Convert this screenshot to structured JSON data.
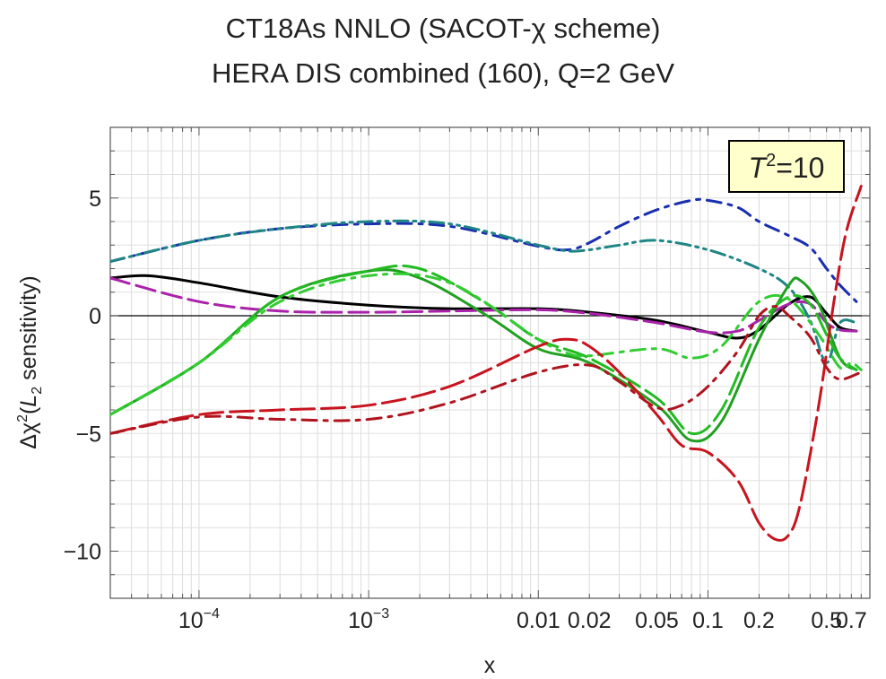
{
  "chart_data": {
    "type": "line",
    "title": "CT18As NNLO (SACOT-χ scheme)",
    "subtitle": "HERA DIS combined (160), Q=2 GeV",
    "xlabel": "x",
    "ylabel_parts": {
      "prefix": "Δχ",
      "sup": "2",
      "open": "(",
      "L": "L",
      "sub": "2",
      "suffix": " sensitivity)"
    },
    "xscale": "log",
    "xlim": [
      3e-05,
      0.9
    ],
    "ylim": [
      -12,
      8
    ],
    "yticks": [
      5,
      0,
      -5,
      -10
    ],
    "ytick_labels": [
      "5",
      "0",
      "−5",
      "−10"
    ],
    "xticks": [
      {
        "v": 0.0001,
        "base": "10",
        "exp": "−4"
      },
      {
        "v": 0.001,
        "base": "10",
        "exp": "−3"
      },
      {
        "v": 0.01,
        "label": "0.01"
      },
      {
        "v": 0.02,
        "label": "0.02"
      },
      {
        "v": 0.05,
        "label": "0.05"
      },
      {
        "v": 0.1,
        "label": "0.1"
      },
      {
        "v": 0.2,
        "label": "0.2"
      },
      {
        "v": 0.5,
        "label": "0.5"
      },
      {
        "v": 0.7,
        "label": "0.7"
      }
    ],
    "annotation": {
      "T": "T",
      "sup": "2",
      "text": "=10",
      "fill": "#ffffcc"
    },
    "series": [
      {
        "name": "dashdot-blue",
        "color": "#1a2fb0",
        "dash": "16 8 4 8",
        "x": [
          3e-05,
          0.0001,
          0.0003,
          0.001,
          0.003,
          0.01,
          0.015,
          0.02,
          0.03,
          0.05,
          0.08,
          0.1,
          0.15,
          0.2,
          0.3,
          0.4,
          0.5,
          0.6,
          0.75
        ],
        "y": [
          2.3,
          3.2,
          3.7,
          3.9,
          3.8,
          2.95,
          2.8,
          3.1,
          3.8,
          4.5,
          4.9,
          4.9,
          4.6,
          4.0,
          3.4,
          2.9,
          2.0,
          1.3,
          0.6
        ]
      },
      {
        "name": "dashdotdot-teal",
        "color": "#1e8585",
        "dash": "16 6 3 6 3 6",
        "x": [
          3e-05,
          0.0001,
          0.0003,
          0.001,
          0.003,
          0.01,
          0.015,
          0.02,
          0.03,
          0.05,
          0.1,
          0.2,
          0.3,
          0.4,
          0.5,
          0.6,
          0.75
        ],
        "y": [
          2.3,
          3.2,
          3.7,
          4.0,
          3.9,
          3.0,
          2.75,
          2.8,
          3.0,
          3.2,
          2.8,
          2.0,
          1.2,
          -0.2,
          -2.0,
          -0.3,
          -0.3
        ]
      },
      {
        "name": "solid-black",
        "color": "#000000",
        "dash": "",
        "x": [
          3e-05,
          5e-05,
          0.0001,
          0.0003,
          0.001,
          0.003,
          0.01,
          0.02,
          0.05,
          0.1,
          0.15,
          0.2,
          0.3,
          0.4,
          0.5,
          0.6,
          0.75
        ],
        "y": [
          1.6,
          1.7,
          1.4,
          0.8,
          0.45,
          0.3,
          0.3,
          0.15,
          -0.2,
          -0.7,
          -0.95,
          -0.6,
          0.5,
          0.8,
          0.1,
          -0.5,
          -0.65
        ]
      },
      {
        "name": "longdash-magenta",
        "color": "#aa22aa",
        "dash": "22 8",
        "x": [
          3e-05,
          0.0001,
          0.0003,
          0.001,
          0.003,
          0.01,
          0.02,
          0.05,
          0.1,
          0.15,
          0.2,
          0.3,
          0.4,
          0.5,
          0.6,
          0.75
        ],
        "y": [
          1.6,
          0.6,
          0.2,
          0.15,
          0.2,
          0.25,
          0.1,
          -0.3,
          -0.7,
          -0.65,
          -0.2,
          0.5,
          0.5,
          -0.3,
          -0.6,
          -0.65
        ]
      },
      {
        "name": "solid-green",
        "color": "#20a020",
        "dash": "",
        "x": [
          3e-05,
          0.0001,
          0.0003,
          0.001,
          0.002,
          0.005,
          0.01,
          0.02,
          0.05,
          0.08,
          0.12,
          0.2,
          0.3,
          0.35,
          0.45,
          0.6,
          0.75
        ],
        "y": [
          -4.2,
          -2.0,
          0.8,
          1.9,
          1.6,
          0.0,
          -1.4,
          -2.0,
          -3.8,
          -5.3,
          -4.5,
          -1.0,
          1.3,
          1.5,
          0.5,
          -1.8,
          -2.3
        ]
      },
      {
        "name": "longdash-green",
        "color": "#22bb22",
        "dash": "26 8",
        "x": [
          3e-05,
          0.0001,
          0.0003,
          0.001,
          0.002,
          0.005,
          0.01,
          0.02,
          0.05,
          0.08,
          0.12,
          0.2,
          0.3,
          0.4,
          0.5,
          0.6,
          0.75
        ],
        "y": [
          -4.2,
          -2.0,
          0.8,
          1.9,
          2.0,
          0.5,
          -1.0,
          -1.8,
          -3.5,
          -5.0,
          -4.0,
          -0.5,
          0.8,
          0.5,
          -0.8,
          -1.8,
          -2.3
        ]
      },
      {
        "name": "dashdot-green",
        "color": "#33cc33",
        "dash": "16 8 4 8",
        "x": [
          3e-05,
          0.0001,
          0.0003,
          0.001,
          0.003,
          0.01,
          0.015,
          0.02,
          0.05,
          0.08,
          0.12,
          0.2,
          0.3,
          0.45,
          0.6,
          0.7,
          0.8
        ],
        "y": [
          -4.2,
          -2.0,
          0.6,
          1.7,
          1.4,
          -1.0,
          -1.6,
          -1.7,
          -1.4,
          -1.8,
          -1.3,
          0.6,
          0.7,
          -0.8,
          -2.2,
          -2.0,
          -2.3
        ]
      },
      {
        "name": "longdash-red",
        "color": "#c8141e",
        "dash": "26 8",
        "x": [
          3e-05,
          0.0001,
          0.0003,
          0.001,
          0.003,
          0.01,
          0.015,
          0.02,
          0.03,
          0.05,
          0.07,
          0.1,
          0.15,
          0.2,
          0.25,
          0.3,
          0.35,
          0.45,
          0.55,
          0.65,
          0.8
        ],
        "y": [
          -5.0,
          -4.2,
          -4.0,
          -3.8,
          -3.0,
          -1.3,
          -1.0,
          -1.3,
          -2.4,
          -4.2,
          -5.5,
          -5.8,
          -7.0,
          -8.8,
          -9.5,
          -9.3,
          -8.0,
          -3.8,
          0.5,
          3.5,
          5.5
        ]
      },
      {
        "name": "dashdot-red",
        "color": "#b0141e",
        "dash": "16 8 4 8",
        "x": [
          3e-05,
          0.0001,
          0.0003,
          0.001,
          0.003,
          0.01,
          0.02,
          0.03,
          0.05,
          0.07,
          0.1,
          0.15,
          0.2,
          0.25,
          0.3,
          0.4,
          0.5,
          0.6,
          0.8
        ],
        "y": [
          -5.0,
          -4.3,
          -4.4,
          -4.4,
          -3.7,
          -2.4,
          -2.1,
          -2.8,
          -3.9,
          -3.8,
          -3.0,
          -1.5,
          0.0,
          0.4,
          0.0,
          -0.9,
          -2.2,
          -2.7,
          -2.4
        ]
      }
    ]
  }
}
